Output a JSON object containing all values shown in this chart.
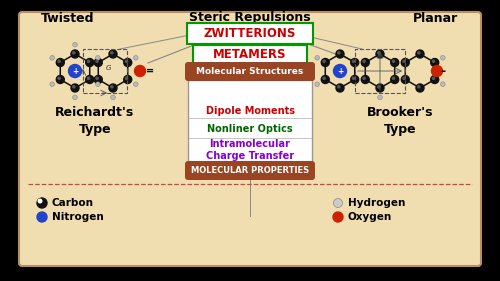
{
  "bg_outer": "#000000",
  "bg_inner": "#f0ddb0",
  "border_color": "#b89060",
  "title_twisted": "Twisted",
  "title_planar": "Planar",
  "title_steric": "Steric Repulsions",
  "label_zwitterions": "ZWITTERIONS",
  "label_metamers": "METAMERS",
  "label_mol_struct": "Molecular Structures",
  "label_mol_prop": "MOLECULAR PROPERTIES",
  "label_dipole": "Dipole Moments",
  "label_nonlinear": "Nonliner Optics",
  "label_intramol": "Intramolecular\nCharge Transfer",
  "label_reichardt": "Reichardt's\nType",
  "label_brooker": "Brooker's\nType",
  "legend_carbon": "Carbon",
  "legend_nitrogen": "Nitrogen",
  "legend_hydrogen": "Hydrogen",
  "legend_oxygen": "Oxygen",
  "color_zwitterions_text": "#cc0000",
  "color_zwitterions_box": "#009900",
  "color_metamers_text": "#cc0000",
  "color_metamers_box": "#009900",
  "color_dipole": "#cc0000",
  "color_nonlinear": "#006600",
  "color_intramol": "#8800cc",
  "color_pill_bg": "#994422",
  "color_pill_text": "#ffffff",
  "color_reichardt": "#000000",
  "color_brooker": "#000000",
  "color_twisted": "#000000",
  "color_planar": "#000000",
  "color_steric": "#000000",
  "dashed_line_color": "#cc4444",
  "mol_atom_color": "#111111",
  "mol_h_color": "#aaaaaa",
  "mol_n_color": "#2244cc",
  "mol_o_color": "#cc2200"
}
